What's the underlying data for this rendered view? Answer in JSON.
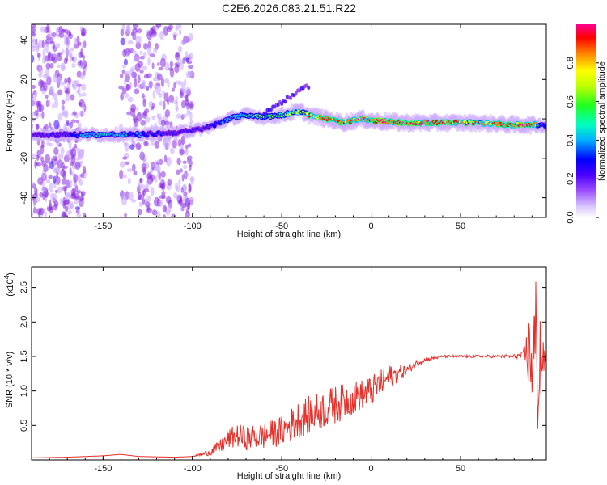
{
  "chart_data": [
    {
      "type": "heatmap",
      "title": "C2E6.2026.083.21.51.R22",
      "xlabel": "Height of straight line (km)",
      "ylabel": "Frequency (Hz)",
      "xlim": [
        -190,
        98
      ],
      "ylim": [
        -50,
        48
      ],
      "xticks": [
        -150,
        -100,
        -50,
        0,
        50
      ],
      "xtick_labels": [
        "-150",
        "-100",
        "-50",
        "0",
        "50"
      ],
      "yticks": [
        -40,
        -20,
        0,
        20,
        40
      ],
      "ytick_labels": [
        "-40",
        "-20",
        "0",
        "20",
        "40"
      ],
      "colorbar": {
        "label": "Normalized spectral amplitude",
        "range": [
          0,
          1
        ],
        "ticks": [
          0.0,
          0.2,
          0.4,
          0.6,
          0.8
        ],
        "tick_labels": [
          "0.0",
          "0.2",
          "0.4",
          "0.6",
          "0.8"
        ],
        "colors": [
          "#ffffff",
          "#c9a6ff",
          "#8a2be2",
          "#3a00ff",
          "#0000ff",
          "#00c8ff",
          "#00ff80",
          "#80ff00",
          "#ffff00",
          "#ff8000",
          "#ff0000",
          "#ff00a0"
        ]
      },
      "ridge": {
        "x": [
          -190,
          -170,
          -150,
          -130,
          -110,
          -100,
          -90,
          -80,
          -70,
          -60,
          -50,
          -40,
          -35,
          -30,
          -25,
          -20,
          -15,
          -10,
          -5,
          0,
          20,
          40,
          60,
          80,
          90,
          95,
          98
        ],
        "y": [
          -8,
          -8,
          -8,
          -8,
          -7,
          -6,
          -4,
          0,
          2,
          1,
          2,
          4,
          2,
          1,
          0,
          -1,
          -2,
          -1,
          0,
          -1,
          -2,
          -2,
          -2,
          -3,
          -3,
          -3,
          -4
        ],
        "amplitude": [
          0.25,
          0.35,
          0.55,
          0.45,
          0.3,
          0.3,
          0.35,
          0.45,
          0.55,
          0.6,
          0.65,
          0.7,
          0.85,
          0.9,
          0.95,
          0.92,
          0.9,
          0.92,
          0.95,
          0.95,
          0.97,
          0.9,
          0.8,
          0.95,
          0.97,
          0.45,
          0.35
        ]
      },
      "noise_regions_km": [
        [
          -190,
          -160
        ],
        [
          -140,
          -100
        ]
      ]
    },
    {
      "type": "line",
      "title": "",
      "xlabel": "Height of straight line (km)",
      "ylabel": "SNR (10 * v/v)",
      "scale_label_base": "(x10",
      "scale_label_exp": "4",
      "scale_label_close": ")",
      "xlim": [
        -190,
        98
      ],
      "ylim": [
        0,
        2.8
      ],
      "xticks": [
        -150,
        -100,
        -50,
        0,
        50
      ],
      "xtick_labels": [
        "-150",
        "-100",
        "-50",
        "0",
        "50"
      ],
      "yticks": [
        0.5,
        1.0,
        1.5,
        2.0,
        2.5
      ],
      "ytick_labels": [
        "0.5",
        "1.0",
        "1.5",
        "2.0",
        "2.5"
      ],
      "series": [
        {
          "name": "SNR",
          "color": "#e8302a",
          "x": [
            -190,
            -170,
            -150,
            -140,
            -130,
            -110,
            -100,
            -92,
            -85,
            -80,
            -75,
            -70,
            -65,
            -60,
            -55,
            -50,
            -45,
            -40,
            -35,
            -30,
            -25,
            -20,
            -15,
            -10,
            -5,
            0,
            5,
            10,
            15,
            20,
            25,
            30,
            40,
            50,
            60,
            70,
            80,
            85,
            88,
            90,
            92,
            94,
            95,
            96,
            98
          ],
          "y": [
            0.03,
            0.04,
            0.06,
            0.08,
            0.05,
            0.04,
            0.05,
            0.1,
            0.18,
            0.3,
            0.35,
            0.32,
            0.33,
            0.35,
            0.38,
            0.42,
            0.5,
            0.6,
            0.65,
            0.7,
            0.75,
            0.8,
            0.85,
            0.9,
            0.95,
            1.0,
            1.1,
            1.2,
            1.25,
            1.3,
            1.4,
            1.45,
            1.5,
            1.5,
            1.5,
            1.5,
            1.5,
            1.52,
            1.55,
            1.55,
            1.5,
            1.45,
            1.45,
            1.45,
            1.45
          ],
          "noise": [
            0,
            0,
            0,
            0,
            0,
            0,
            0,
            0.04,
            0.1,
            0.15,
            0.17,
            0.18,
            0.18,
            0.2,
            0.2,
            0.22,
            0.25,
            0.28,
            0.28,
            0.28,
            0.28,
            0.28,
            0.26,
            0.25,
            0.22,
            0.22,
            0.2,
            0.18,
            0.12,
            0.08,
            0.05,
            0.03,
            0.02,
            0.02,
            0.02,
            0.02,
            0.03,
            0.05,
            0.5,
            0.9,
            1.3,
            1.2,
            0.8,
            0.3,
            0.05
          ]
        }
      ]
    }
  ]
}
